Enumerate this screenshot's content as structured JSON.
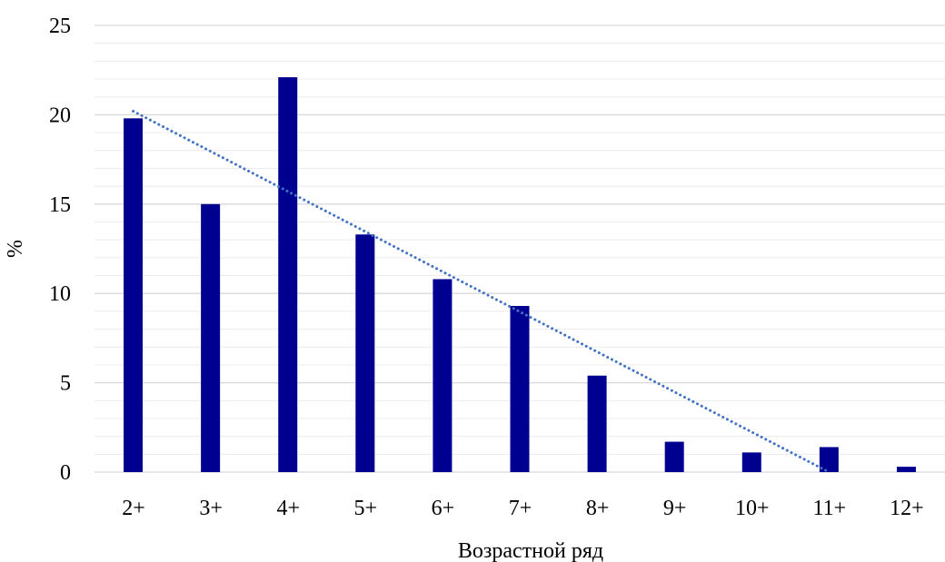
{
  "chart_data": {
    "type": "bar",
    "categories": [
      "2+",
      "3+",
      "4+",
      "5+",
      "6+",
      "7+",
      "8+",
      "9+",
      "10+",
      "11+",
      "12+"
    ],
    "values": [
      19.8,
      15.0,
      22.1,
      13.3,
      10.8,
      9.3,
      5.4,
      1.7,
      1.1,
      1.4,
      0.3
    ],
    "title": "",
    "xlabel": "Возрастной ряд",
    "ylabel": "%",
    "ylim": [
      0,
      25
    ],
    "yticks": [
      0,
      5,
      10,
      15,
      20,
      25
    ],
    "grid": true,
    "legend": "none",
    "trendline": {
      "type": "linear",
      "style": "dotted",
      "start": {
        "category": "2+",
        "value": 20.2
      },
      "end": {
        "category": "11+",
        "value": 0.0
      }
    },
    "colors": {
      "bar": "#000090",
      "trendline": "#4472C4",
      "grid": "#d9d9d9"
    }
  }
}
